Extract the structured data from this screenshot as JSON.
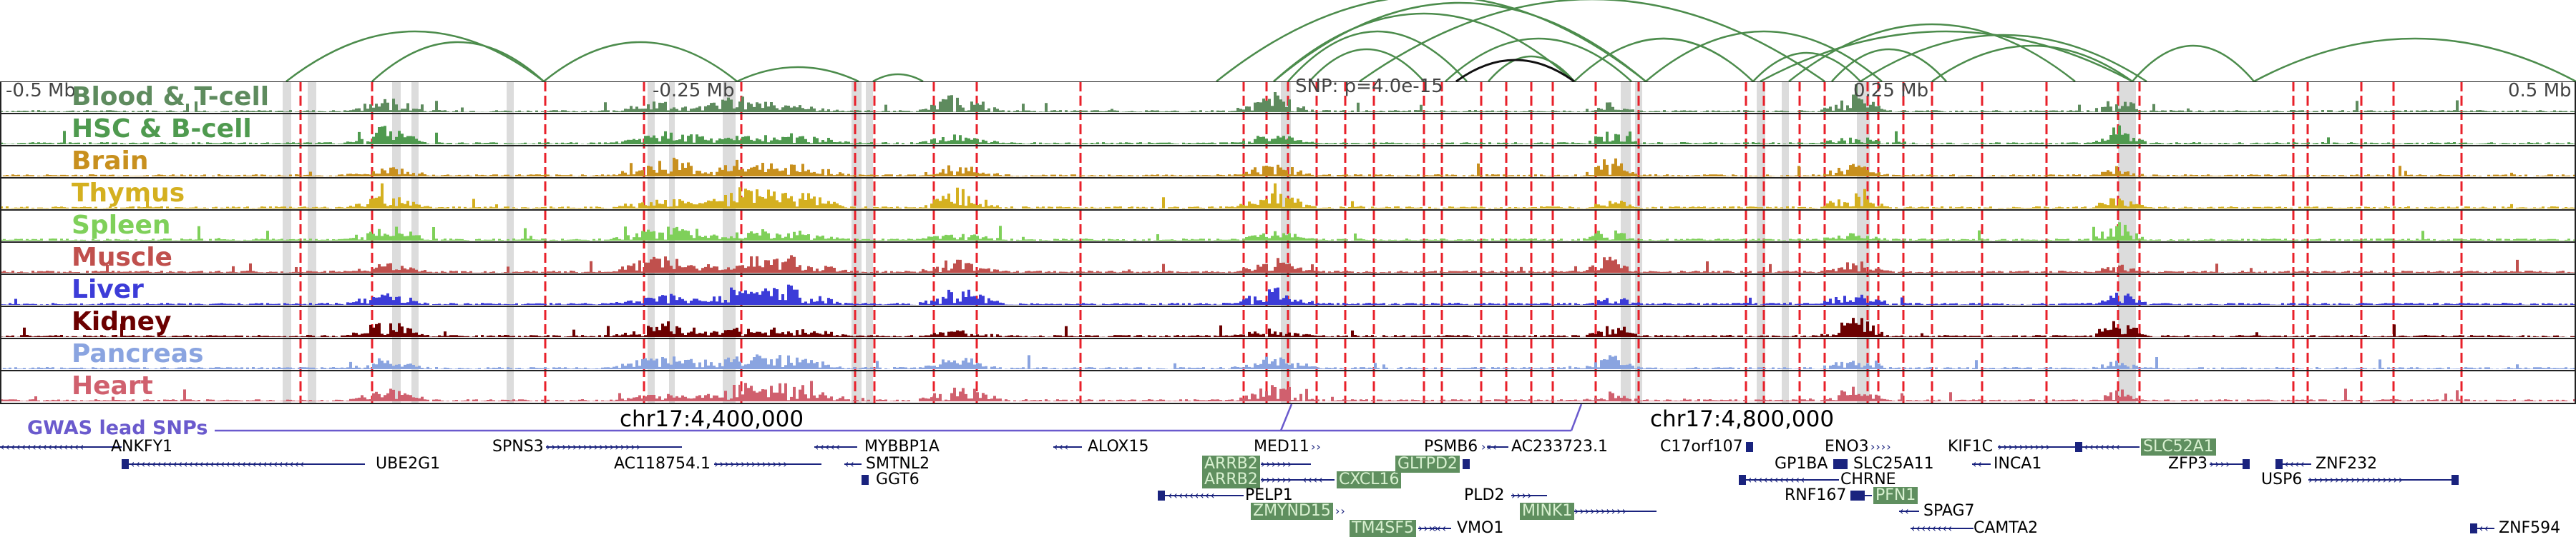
{
  "coordinates": {
    "left": "-0.5 Mb",
    "mid_left": "-0.25 Mb",
    "snp": "SNP: p=4.0e-15",
    "mid_right": "0.25 Mb",
    "right": "0.5 Mb"
  },
  "positions": {
    "left": "chr17:4,400,000",
    "right": "chr17:4,800,000"
  },
  "gwas_label": "GWAS lead SNPs",
  "tracks": [
    {
      "label": "Blood & T-cell",
      "color": "#5e8b5e"
    },
    {
      "label": "HSC & B-cell",
      "color": "#4f9a4f"
    },
    {
      "label": "Brain",
      "color": "#c8901e"
    },
    {
      "label": "Thymus",
      "color": "#d4b020"
    },
    {
      "label": "Spleen",
      "color": "#7fd05a"
    },
    {
      "label": "Muscle",
      "color": "#c0504d"
    },
    {
      "label": "Liver",
      "color": "#3c3cd8"
    },
    {
      "label": "Kidney",
      "color": "#6b0000"
    },
    {
      "label": "Pancreas",
      "color": "#8aa4e0"
    },
    {
      "label": "Heart",
      "color": "#d0606e"
    }
  ],
  "genes": [
    {
      "name": "ANKFY1",
      "dir": "left",
      "highlight": false
    },
    {
      "name": "UBE2G1",
      "dir": "left",
      "highlight": false
    },
    {
      "name": "SPNS3",
      "dir": "right",
      "highlight": false
    },
    {
      "name": "AC118754.1",
      "dir": "right",
      "highlight": false
    },
    {
      "name": "MYBBP1A",
      "dir": "left",
      "highlight": false
    },
    {
      "name": "SMTNL2",
      "dir": "left",
      "highlight": false
    },
    {
      "name": "GGT6",
      "dir": "left",
      "highlight": false
    },
    {
      "name": "ALOX15",
      "dir": "left",
      "highlight": false
    },
    {
      "name": "MED11",
      "dir": "right",
      "highlight": false
    },
    {
      "name": "ARRB2",
      "dir": "right",
      "highlight": true
    },
    {
      "name": "ARRB2",
      "dir": "right",
      "highlight": true
    },
    {
      "name": "PELP1",
      "dir": "left",
      "highlight": false
    },
    {
      "name": "ZMYND15",
      "dir": "right",
      "highlight": true
    },
    {
      "name": "CXCL16",
      "dir": "left",
      "highlight": true
    },
    {
      "name": "TM4SF5",
      "dir": "right",
      "highlight": true
    },
    {
      "name": "VMO1",
      "dir": "left",
      "highlight": false
    },
    {
      "name": "PSMB6",
      "dir": "right",
      "highlight": false
    },
    {
      "name": "GLTPD2",
      "dir": "left",
      "highlight": true
    },
    {
      "name": "PLD2",
      "dir": "right",
      "highlight": false
    },
    {
      "name": "MINK1",
      "dir": "right",
      "highlight": true
    },
    {
      "name": "AC233723.1",
      "dir": "left",
      "highlight": false
    },
    {
      "name": "C17orf107",
      "dir": "right",
      "highlight": false
    },
    {
      "name": "GP1BA",
      "dir": "right",
      "highlight": false
    },
    {
      "name": "CHRNE",
      "dir": "left",
      "highlight": false
    },
    {
      "name": "RNF167",
      "dir": "right",
      "highlight": false
    },
    {
      "name": "ENO3",
      "dir": "right",
      "highlight": false
    },
    {
      "name": "SLC25A11",
      "dir": "left",
      "highlight": false
    },
    {
      "name": "PFN1",
      "dir": "left",
      "highlight": true
    },
    {
      "name": "SPAG7",
      "dir": "left",
      "highlight": false
    },
    {
      "name": "CAMTA2",
      "dir": "left",
      "highlight": false
    },
    {
      "name": "KIF1C",
      "dir": "right",
      "highlight": false
    },
    {
      "name": "INCA1",
      "dir": "left",
      "highlight": false
    },
    {
      "name": "SLC52A1",
      "dir": "left",
      "highlight": true
    },
    {
      "name": "ZFP3",
      "dir": "right",
      "highlight": false
    },
    {
      "name": "USP6",
      "dir": "right",
      "highlight": false
    },
    {
      "name": "ZNF232",
      "dir": "left",
      "highlight": false
    },
    {
      "name": "ZNF594",
      "dir": "left",
      "highlight": false
    }
  ]
}
